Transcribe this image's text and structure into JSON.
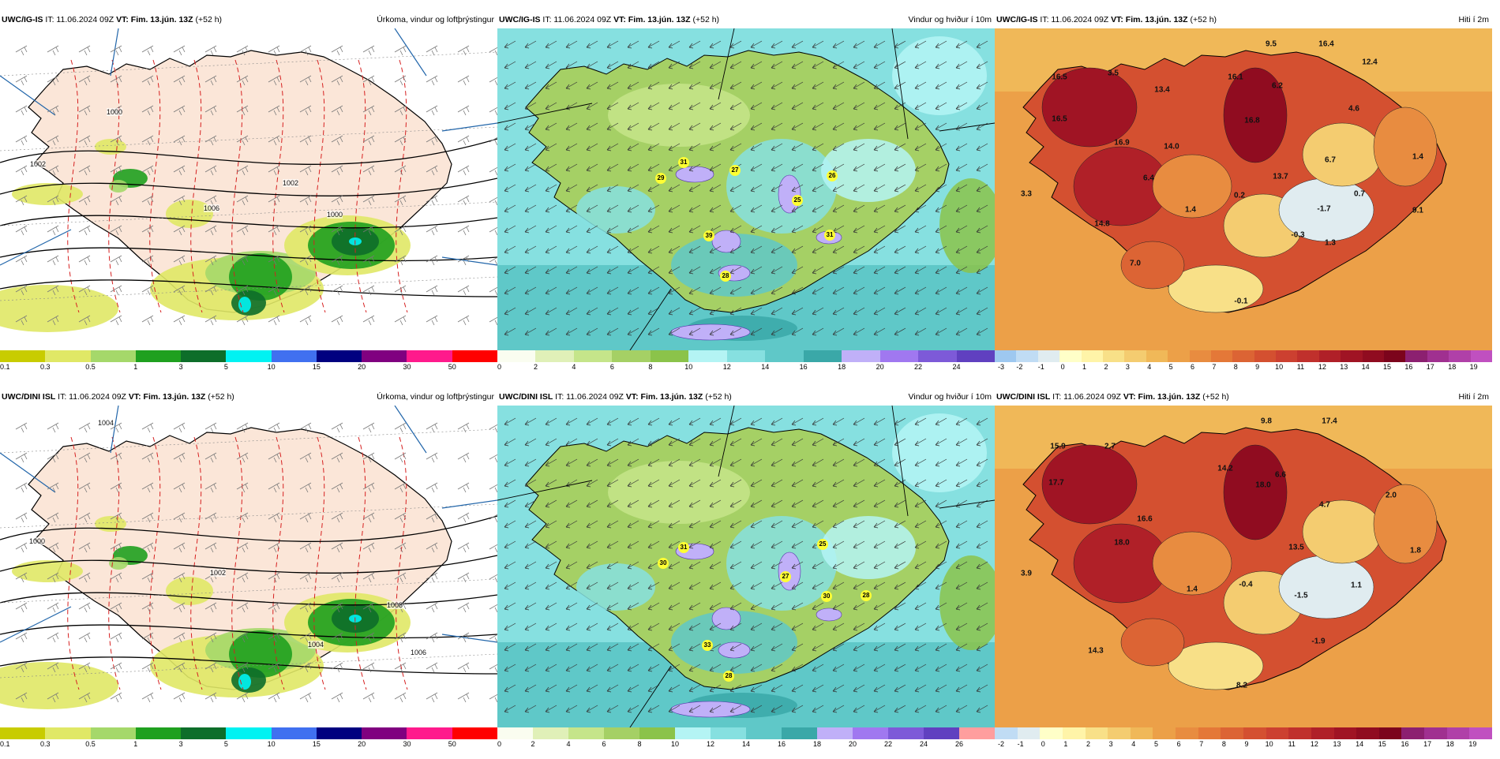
{
  "rows": [
    {
      "model": "UWC/IG-IS",
      "panels": [
        {
          "kind": "precip",
          "header": {
            "model": "UWC/IG-IS",
            "it": " IT: 11.06.2024 09Z ",
            "vt_label": "VT: Fim. 13.jún. 13Z",
            "lead": " (+52 h)",
            "title": "Úrkoma, vindur og loftþrýstingur"
          },
          "colorbar": {
            "ticks": [
              "0.1",
              "0.3",
              "0.5",
              "1",
              "3",
              "5",
              "10",
              "15",
              "20",
              "30",
              "50"
            ]
          },
          "isobar_labels": [
            "1000",
            "1002",
            "1006",
            "1000",
            "1002"
          ],
          "values": []
        },
        {
          "kind": "wind",
          "header": {
            "model": "UWC/IG-IS",
            "it": " IT: 11.06.2024 09Z ",
            "vt_label": "VT: Fim. 13.jún. 13Z",
            "lead": " (+52 h)",
            "title": "Vindur og hviður í 10m"
          },
          "colorbar": {
            "ticks": [
              "0",
              "2",
              "4",
              "6",
              "8",
              "10",
              "12",
              "14",
              "16",
              "18",
              "20",
              "22",
              "24"
            ]
          },
          "gust_labels": [
            "31",
            "29",
            "27",
            "26",
            "25",
            "39",
            "28",
            "31"
          ]
        },
        {
          "kind": "temp",
          "header": {
            "model": "UWC/IG-IS",
            "it": " IT: 11.06.2024 09Z ",
            "vt_label": "VT: Fim. 13.jún. 13Z",
            "lead": " (+52 h)",
            "title": "Hiti í 2m"
          },
          "colorbar": {
            "ticks": [
              "-3",
              "-2",
              "-1",
              "0",
              "1",
              "2",
              "3",
              "4",
              "5",
              "6",
              "7",
              "8",
              "9",
              "10",
              "11",
              "12",
              "13",
              "14",
              "15",
              "16",
              "17",
              "18",
              "19"
            ]
          },
          "values": [
            "9.5",
            "16.4",
            "16.5",
            "3.5",
            "16.1",
            "12.4",
            "13.4",
            "6.2",
            "16.5",
            "16.8",
            "4.6",
            "16.9",
            "14.0",
            "1.4",
            "13.7",
            "6.7",
            "6.4",
            "3.3",
            "0.2",
            "0.7",
            "1.4",
            "-1.7",
            "9.1",
            "14.8",
            "-0.3",
            "1.3",
            "7.0",
            "-0.1"
          ]
        }
      ]
    },
    {
      "model": "UWC/DINI ISL",
      "panels": [
        {
          "kind": "precip",
          "header": {
            "model": "UWC/DINI ISL",
            "it": " IT: 11.06.2024 09Z ",
            "vt_label": "VT: Fim. 13.jún. 13Z",
            "lead": " (+52 h)",
            "title": "Úrkoma, vindur og loftþrýstingur"
          },
          "colorbar": {
            "ticks": [
              "0.1",
              "0.3",
              "0.5",
              "1",
              "3",
              "5",
              "10",
              "15",
              "20",
              "30",
              "50"
            ]
          },
          "isobar_labels": [
            "1004",
            "1000",
            "1002",
            "1008",
            "1004",
            "1006"
          ],
          "values": []
        },
        {
          "kind": "wind",
          "header": {
            "model": "UWC/DINI ISL",
            "it": " IT: 11.06.2024 09Z ",
            "vt_label": "VT: Fim. 13.jún. 13Z",
            "lead": " (+52 h)",
            "title": "Vindur og hviður í 10m"
          },
          "colorbar": {
            "ticks": [
              "0",
              "2",
              "4",
              "6",
              "8",
              "10",
              "12",
              "14",
              "16",
              "18",
              "20",
              "22",
              "24",
              "26"
            ]
          },
          "gust_labels": [
            "31",
            "30",
            "25",
            "27",
            "30",
            "28",
            "33",
            "28"
          ]
        },
        {
          "kind": "temp",
          "header": {
            "model": "UWC/DINI ISL",
            "it": " IT: 11.06.2024 09Z ",
            "vt_label": "VT: Fim. 13.jún. 13Z",
            "lead": " (+52 h)",
            "title": "Hiti í 2m"
          },
          "colorbar": {
            "ticks": [
              "-2",
              "-1",
              "0",
              "1",
              "2",
              "3",
              "4",
              "5",
              "6",
              "7",
              "8",
              "9",
              "10",
              "11",
              "12",
              "13",
              "14",
              "15",
              "16",
              "17",
              "18",
              "19"
            ]
          },
          "values": [
            "9.8",
            "17.4",
            "15.9",
            "2.7",
            "14.2",
            "6.6",
            "17.7",
            "18.0",
            "16.6",
            "2.0",
            "4.7",
            "18.0",
            "13.5",
            "1.8",
            "3.9",
            "1.4",
            "-0.4",
            "-1.5",
            "1.1",
            "14.3",
            "-1.9",
            "8.2"
          ]
        }
      ]
    }
  ],
  "colors": {
    "precip": [
      "#c8cc00",
      "#e0e866",
      "#a5d86a",
      "#1fa01f",
      "#0d6e2a",
      "#00f2f2",
      "#4070f0",
      "#000080",
      "#800080",
      "#ff1a8c",
      "#ff0000"
    ],
    "wind": [
      "#fafdf0",
      "#e0f0b8",
      "#c5e58a",
      "#a5d065",
      "#8bc34a",
      "#b4f4f4",
      "#86e0e0",
      "#5fc8c8",
      "#3aa8a8",
      "#c0b0f8",
      "#a078f0",
      "#7d5ad8",
      "#6040c0",
      "#ff9e9e"
    ],
    "temp": [
      "#9ec8f0",
      "#c0dcf4",
      "#e0ecf0",
      "#ffffc8",
      "#fff4a8",
      "#f8e088",
      "#f4cc70",
      "#f0b858",
      "#eca048",
      "#e88c40",
      "#e47838",
      "#dc6434",
      "#d45030",
      "#cc4030",
      "#c0302c",
      "#b02028",
      "#a01424",
      "#900c20",
      "#7c041c",
      "#8c2070",
      "#a03090",
      "#b040a8",
      "#c050c0"
    ]
  }
}
